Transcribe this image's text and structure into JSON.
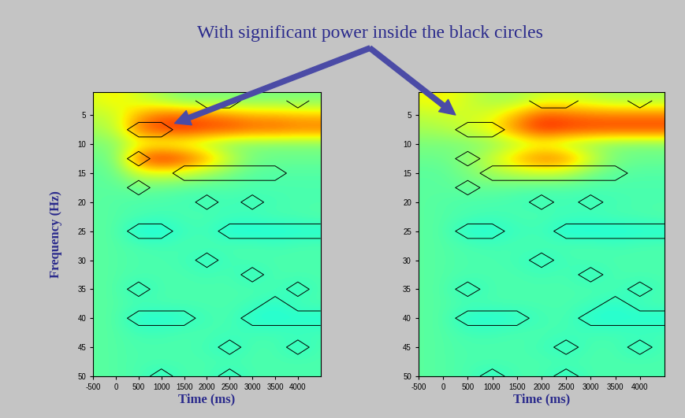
{
  "annotation": "With significant power inside the black circles",
  "chart_data": [
    {
      "type": "heatmap",
      "xlabel": "Time (ms)",
      "ylabel": "Frequency (Hz)",
      "x": [
        -500,
        0,
        500,
        1000,
        1500,
        2000,
        2500,
        3000,
        3500,
        4000,
        4500
      ],
      "y": [
        2.5,
        5,
        7.5,
        10,
        12.5,
        15,
        17.5,
        20,
        22.5,
        25,
        27.5,
        30,
        32.5,
        35,
        37.5,
        40,
        42.5,
        45,
        47.5,
        50
      ],
      "xlim": [
        -500,
        4500
      ],
      "ylim": [
        50,
        1
      ],
      "xticks": [
        -500,
        0,
        500,
        1000,
        1500,
        2000,
        2500,
        3000,
        3500,
        4000
      ],
      "yticks": [
        5,
        10,
        15,
        20,
        25,
        30,
        35,
        40,
        45,
        50
      ],
      "clim": [
        0,
        1
      ],
      "cells": [
        [
          0.62,
          0.66,
          0.6,
          0.55,
          0.5,
          0.5,
          0.5,
          0.5,
          0.5,
          0.5,
          0.5
        ],
        [
          0.58,
          0.6,
          0.72,
          0.8,
          0.8,
          0.78,
          0.75,
          0.72,
          0.72,
          0.7,
          0.7
        ],
        [
          0.55,
          0.58,
          0.8,
          0.85,
          0.88,
          0.85,
          0.85,
          0.82,
          0.82,
          0.8,
          0.8
        ],
        [
          0.5,
          0.52,
          0.6,
          0.6,
          0.58,
          0.55,
          0.5,
          0.5,
          0.5,
          0.5,
          0.5
        ],
        [
          0.48,
          0.5,
          0.82,
          0.9,
          0.85,
          0.75,
          0.6,
          0.5,
          0.48,
          0.48,
          0.48
        ],
        [
          0.46,
          0.48,
          0.6,
          0.62,
          0.6,
          0.55,
          0.5,
          0.46,
          0.45,
          0.45,
          0.45
        ],
        [
          0.46,
          0.46,
          0.48,
          0.47,
          0.46,
          0.45,
          0.45,
          0.44,
          0.44,
          0.44,
          0.44
        ],
        [
          0.46,
          0.45,
          0.44,
          0.44,
          0.43,
          0.42,
          0.43,
          0.42,
          0.43,
          0.44,
          0.44
        ],
        [
          0.46,
          0.45,
          0.44,
          0.43,
          0.44,
          0.44,
          0.43,
          0.43,
          0.44,
          0.44,
          0.45
        ],
        [
          0.46,
          0.45,
          0.38,
          0.38,
          0.42,
          0.43,
          0.38,
          0.38,
          0.38,
          0.39,
          0.39
        ],
        [
          0.46,
          0.45,
          0.44,
          0.43,
          0.44,
          0.44,
          0.44,
          0.44,
          0.43,
          0.44,
          0.44
        ],
        [
          0.46,
          0.45,
          0.44,
          0.44,
          0.43,
          0.4,
          0.43,
          0.44,
          0.44,
          0.44,
          0.44
        ],
        [
          0.46,
          0.45,
          0.44,
          0.44,
          0.44,
          0.43,
          0.44,
          0.4,
          0.44,
          0.44,
          0.44
        ],
        [
          0.46,
          0.45,
          0.4,
          0.44,
          0.44,
          0.44,
          0.44,
          0.44,
          0.44,
          0.4,
          0.44
        ],
        [
          0.46,
          0.45,
          0.44,
          0.44,
          0.44,
          0.44,
          0.44,
          0.43,
          0.4,
          0.44,
          0.44
        ],
        [
          0.46,
          0.45,
          0.39,
          0.39,
          0.4,
          0.43,
          0.44,
          0.39,
          0.39,
          0.39,
          0.39
        ],
        [
          0.46,
          0.45,
          0.43,
          0.43,
          0.44,
          0.44,
          0.43,
          0.43,
          0.43,
          0.43,
          0.43
        ],
        [
          0.46,
          0.45,
          0.44,
          0.44,
          0.44,
          0.43,
          0.4,
          0.44,
          0.44,
          0.4,
          0.44
        ],
        [
          0.46,
          0.45,
          0.44,
          0.44,
          0.44,
          0.44,
          0.44,
          0.44,
          0.44,
          0.44,
          0.44
        ],
        [
          0.46,
          0.45,
          0.44,
          0.4,
          0.44,
          0.44,
          0.4,
          0.44,
          0.44,
          0.44,
          0.44
        ]
      ],
      "significant": [
        [
          0,
          0,
          0,
          0,
          0,
          1,
          1,
          0,
          0,
          1,
          0
        ],
        [
          0,
          0,
          0,
          0,
          0,
          0,
          0,
          0,
          0,
          0,
          0
        ],
        [
          0,
          0,
          1,
          1,
          0,
          0,
          0,
          0,
          0,
          0,
          0
        ],
        [
          0,
          0,
          0,
          0,
          0,
          0,
          0,
          0,
          0,
          0,
          0
        ],
        [
          0,
          0,
          1,
          0,
          0,
          0,
          0,
          0,
          0,
          0,
          0
        ],
        [
          0,
          0,
          0,
          0,
          1,
          1,
          1,
          1,
          1,
          0,
          0
        ],
        [
          0,
          0,
          1,
          0,
          0,
          0,
          0,
          0,
          0,
          0,
          0
        ],
        [
          0,
          0,
          0,
          0,
          0,
          1,
          0,
          1,
          0,
          0,
          0
        ],
        [
          0,
          0,
          0,
          0,
          0,
          0,
          0,
          0,
          0,
          0,
          0
        ],
        [
          0,
          0,
          1,
          1,
          0,
          0,
          1,
          1,
          1,
          1,
          1
        ],
        [
          0,
          0,
          0,
          0,
          0,
          0,
          0,
          0,
          0,
          0,
          0
        ],
        [
          0,
          0,
          0,
          0,
          0,
          1,
          0,
          0,
          0,
          0,
          0
        ],
        [
          0,
          0,
          0,
          0,
          0,
          0,
          0,
          1,
          0,
          0,
          0
        ],
        [
          0,
          0,
          1,
          0,
          0,
          0,
          0,
          0,
          0,
          1,
          0
        ],
        [
          0,
          0,
          0,
          0,
          0,
          0,
          0,
          0,
          1,
          0,
          0
        ],
        [
          0,
          0,
          1,
          1,
          1,
          0,
          0,
          1,
          1,
          1,
          1
        ],
        [
          0,
          0,
          0,
          0,
          0,
          0,
          0,
          0,
          0,
          0,
          0
        ],
        [
          0,
          0,
          0,
          0,
          0,
          0,
          1,
          0,
          0,
          1,
          0
        ],
        [
          0,
          0,
          0,
          0,
          0,
          0,
          0,
          0,
          0,
          0,
          0
        ],
        [
          0,
          0,
          0,
          1,
          0,
          0,
          1,
          0,
          0,
          0,
          0
        ]
      ]
    },
    {
      "type": "heatmap",
      "xlabel": "Time (ms)",
      "x": [
        -500,
        0,
        500,
        1000,
        1500,
        2000,
        2500,
        3000,
        3500,
        4000,
        4500
      ],
      "y": [
        2.5,
        5,
        7.5,
        10,
        12.5,
        15,
        17.5,
        20,
        22.5,
        25,
        27.5,
        30,
        32.5,
        35,
        37.5,
        40,
        42.5,
        45,
        47.5,
        50
      ],
      "xlim": [
        -500,
        4500
      ],
      "ylim": [
        50,
        1
      ],
      "xticks": [
        -500,
        0,
        500,
        1000,
        1500,
        2000,
        2500,
        3000,
        3500,
        4000
      ],
      "yticks": [
        5,
        10,
        15,
        20,
        25,
        30,
        35,
        40,
        45,
        50
      ],
      "clim": [
        0,
        1
      ],
      "cells": [
        [
          0.64,
          0.66,
          0.6,
          0.55,
          0.55,
          0.6,
          0.6,
          0.58,
          0.55,
          0.55,
          0.55
        ],
        [
          0.58,
          0.6,
          0.6,
          0.62,
          0.72,
          0.82,
          0.8,
          0.78,
          0.78,
          0.78,
          0.78
        ],
        [
          0.55,
          0.56,
          0.6,
          0.66,
          0.78,
          0.88,
          0.86,
          0.85,
          0.85,
          0.85,
          0.85
        ],
        [
          0.5,
          0.5,
          0.5,
          0.52,
          0.56,
          0.6,
          0.55,
          0.52,
          0.5,
          0.5,
          0.5
        ],
        [
          0.48,
          0.48,
          0.52,
          0.6,
          0.72,
          0.8,
          0.78,
          0.62,
          0.5,
          0.48,
          0.48
        ],
        [
          0.46,
          0.46,
          0.5,
          0.55,
          0.58,
          0.6,
          0.58,
          0.5,
          0.46,
          0.45,
          0.45
        ],
        [
          0.46,
          0.46,
          0.47,
          0.47,
          0.46,
          0.45,
          0.45,
          0.44,
          0.44,
          0.44,
          0.44
        ],
        [
          0.46,
          0.45,
          0.44,
          0.44,
          0.43,
          0.42,
          0.43,
          0.42,
          0.43,
          0.44,
          0.44
        ],
        [
          0.46,
          0.45,
          0.44,
          0.43,
          0.44,
          0.44,
          0.43,
          0.43,
          0.44,
          0.44,
          0.45
        ],
        [
          0.46,
          0.45,
          0.39,
          0.39,
          0.42,
          0.43,
          0.38,
          0.38,
          0.38,
          0.39,
          0.39
        ],
        [
          0.46,
          0.45,
          0.44,
          0.43,
          0.44,
          0.44,
          0.44,
          0.44,
          0.43,
          0.44,
          0.44
        ],
        [
          0.46,
          0.45,
          0.44,
          0.44,
          0.43,
          0.4,
          0.43,
          0.44,
          0.44,
          0.44,
          0.44
        ],
        [
          0.46,
          0.45,
          0.44,
          0.44,
          0.44,
          0.43,
          0.44,
          0.4,
          0.44,
          0.44,
          0.44
        ],
        [
          0.46,
          0.45,
          0.4,
          0.44,
          0.44,
          0.44,
          0.44,
          0.44,
          0.44,
          0.4,
          0.44
        ],
        [
          0.46,
          0.45,
          0.44,
          0.44,
          0.44,
          0.44,
          0.44,
          0.43,
          0.4,
          0.44,
          0.44
        ],
        [
          0.46,
          0.45,
          0.39,
          0.39,
          0.4,
          0.43,
          0.44,
          0.39,
          0.39,
          0.39,
          0.39
        ],
        [
          0.46,
          0.45,
          0.43,
          0.43,
          0.44,
          0.44,
          0.43,
          0.43,
          0.43,
          0.43,
          0.43
        ],
        [
          0.46,
          0.45,
          0.44,
          0.44,
          0.44,
          0.43,
          0.4,
          0.44,
          0.44,
          0.4,
          0.44
        ],
        [
          0.46,
          0.45,
          0.44,
          0.44,
          0.44,
          0.44,
          0.44,
          0.44,
          0.44,
          0.44,
          0.44
        ],
        [
          0.46,
          0.45,
          0.44,
          0.4,
          0.44,
          0.44,
          0.4,
          0.44,
          0.44,
          0.44,
          0.44
        ]
      ],
      "significant": [
        [
          0,
          0,
          0,
          0,
          0,
          1,
          1,
          0,
          0,
          1,
          0
        ],
        [
          0,
          0,
          0,
          0,
          0,
          0,
          0,
          0,
          0,
          0,
          0
        ],
        [
          0,
          0,
          1,
          1,
          0,
          0,
          0,
          0,
          0,
          0,
          0
        ],
        [
          0,
          0,
          0,
          0,
          0,
          0,
          0,
          0,
          0,
          0,
          0
        ],
        [
          0,
          0,
          1,
          0,
          0,
          0,
          0,
          0,
          0,
          0,
          0
        ],
        [
          0,
          0,
          0,
          1,
          1,
          1,
          1,
          1,
          1,
          0,
          0
        ],
        [
          0,
          0,
          1,
          0,
          0,
          0,
          0,
          0,
          0,
          0,
          0
        ],
        [
          0,
          0,
          0,
          0,
          0,
          1,
          0,
          1,
          0,
          0,
          0
        ],
        [
          0,
          0,
          0,
          0,
          0,
          0,
          0,
          0,
          0,
          0,
          0
        ],
        [
          0,
          0,
          1,
          1,
          0,
          0,
          1,
          1,
          1,
          1,
          1
        ],
        [
          0,
          0,
          0,
          0,
          0,
          0,
          0,
          0,
          0,
          0,
          0
        ],
        [
          0,
          0,
          0,
          0,
          0,
          1,
          0,
          0,
          0,
          0,
          0
        ],
        [
          0,
          0,
          0,
          0,
          0,
          0,
          0,
          1,
          0,
          0,
          0
        ],
        [
          0,
          0,
          1,
          0,
          0,
          0,
          0,
          0,
          0,
          1,
          0
        ],
        [
          0,
          0,
          0,
          0,
          0,
          0,
          0,
          0,
          1,
          0,
          0
        ],
        [
          0,
          0,
          1,
          1,
          1,
          0,
          0,
          1,
          1,
          1,
          1
        ],
        [
          0,
          0,
          0,
          0,
          0,
          0,
          0,
          0,
          0,
          0,
          0
        ],
        [
          0,
          0,
          0,
          0,
          0,
          0,
          1,
          0,
          0,
          1,
          0
        ],
        [
          0,
          0,
          0,
          0,
          0,
          0,
          0,
          0,
          0,
          0,
          0
        ],
        [
          0,
          0,
          0,
          1,
          0,
          0,
          1,
          0,
          0,
          0,
          0
        ]
      ]
    }
  ]
}
